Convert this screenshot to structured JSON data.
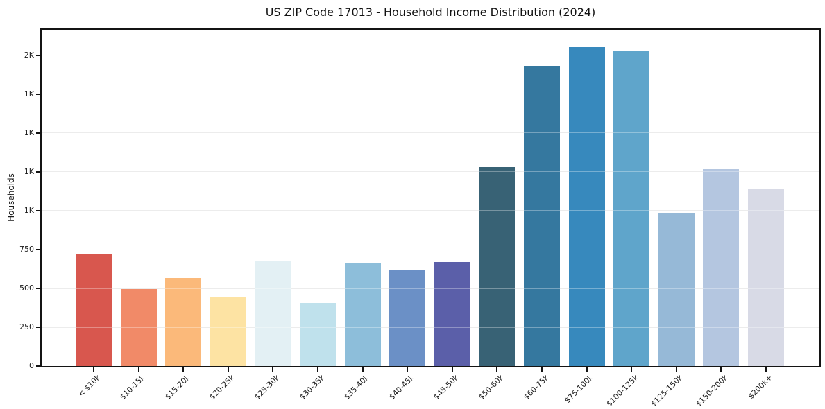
{
  "chart_data": {
    "type": "bar",
    "title": "US ZIP Code 17013 - Household Income Distribution (2024)",
    "xlabel": "",
    "ylabel": "Households",
    "categories": [
      "< $10k",
      "$10-15k",
      "$15-20k",
      "$20-25k",
      "$25-30k",
      "$30-35k",
      "$35-40k",
      "$40-45k",
      "$45-50k",
      "$50-60k",
      "$60-75k",
      "$75-100k",
      "$100-125k",
      "$125-150k",
      "$150-200k",
      "$200k+"
    ],
    "values": [
      725,
      495,
      565,
      445,
      680,
      405,
      665,
      615,
      670,
      1280,
      1935,
      2055,
      2030,
      985,
      1270,
      1145
    ],
    "bar_colors": [
      "#d8574e",
      "#f18a68",
      "#fbb97a",
      "#fde3a3",
      "#e3f0f4",
      "#bfe1ec",
      "#8dbeda",
      "#6b90c6",
      "#5b5fa9",
      "#386275",
      "#35789f",
      "#3789bd",
      "#5fa5cb",
      "#96b9d7",
      "#b4c6e0",
      "#d8dae6"
    ],
    "y_ticks": [
      {
        "value": 0,
        "label": "0"
      },
      {
        "value": 250,
        "label": "250"
      },
      {
        "value": 500,
        "label": "500"
      },
      {
        "value": 750,
        "label": "750"
      },
      {
        "value": 1000,
        "label": "1K"
      },
      {
        "value": 1250,
        "label": "1K"
      },
      {
        "value": 1500,
        "label": "1K"
      },
      {
        "value": 1750,
        "label": "1K"
      },
      {
        "value": 2000,
        "label": "2K"
      }
    ],
    "ylim": [
      0,
      2165
    ],
    "xtick_rotation_deg": 45,
    "grid": "horizontal",
    "legend": "none",
    "spine_color": "#141414",
    "grid_color": "#e4e4e4",
    "background_color": "#ffffff"
  }
}
